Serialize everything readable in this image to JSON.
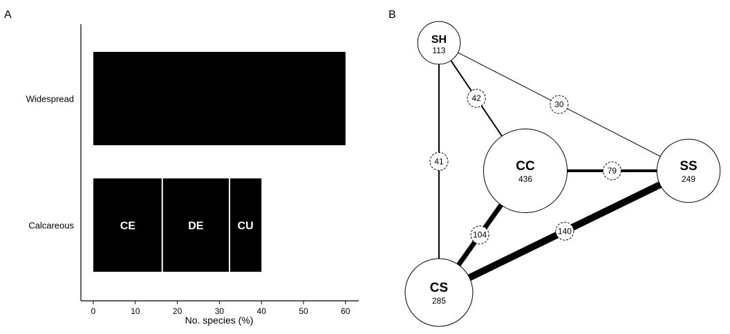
{
  "panels": {
    "a_label": "A",
    "b_label": "B"
  },
  "chart_data": [
    {
      "type": "bar",
      "orientation": "horizontal",
      "stacked": true,
      "xlabel": "No. species (%)",
      "ylabel": "",
      "xlim": [
        0,
        60
      ],
      "xticks": [
        0,
        10,
        20,
        30,
        40,
        50,
        60
      ],
      "grid": false,
      "categories": [
        "Widespread",
        "Calcareous"
      ],
      "series": [
        {
          "category": "Widespread",
          "label": "",
          "value": 60,
          "color": "#000000"
        },
        {
          "category": "Calcareous",
          "label": "CE",
          "value": 16.4,
          "color": "#000000"
        },
        {
          "category": "Calcareous",
          "label": "DE",
          "value": 16,
          "color": "#000000"
        },
        {
          "category": "Calcareous",
          "label": "CU",
          "value": 7.6,
          "color": "#000000"
        }
      ]
    },
    {
      "type": "network",
      "nodes": [
        {
          "id": "SH",
          "label": "SH",
          "value": 113
        },
        {
          "id": "CC",
          "label": "CC",
          "value": 436
        },
        {
          "id": "SS",
          "label": "SS",
          "value": 249
        },
        {
          "id": "CS",
          "label": "CS",
          "value": 285
        }
      ],
      "edges": [
        {
          "source": "SH",
          "target": "CC",
          "value": 42
        },
        {
          "source": "SH",
          "target": "SS",
          "value": 30
        },
        {
          "source": "SH",
          "target": "CS",
          "value": 41
        },
        {
          "source": "CC",
          "target": "SS",
          "value": 79
        },
        {
          "source": "CC",
          "target": "CS",
          "value": 104
        },
        {
          "source": "SS",
          "target": "CS",
          "value": 140
        }
      ]
    }
  ]
}
